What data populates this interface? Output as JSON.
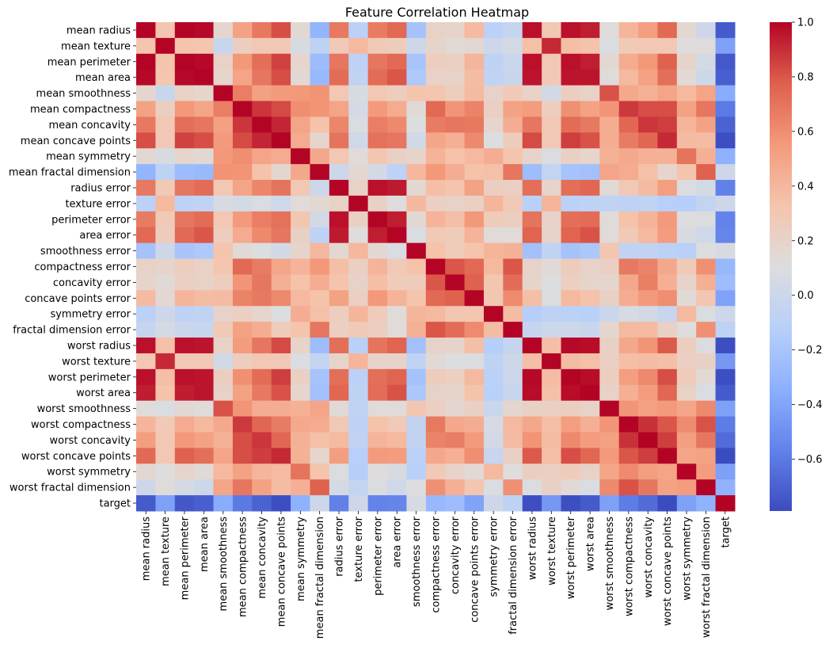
{
  "chart_data": {
    "type": "heatmap",
    "title": "Feature Correlation Heatmap",
    "colormap": "coolwarm",
    "colormap_stops": [
      "#3b4cc0",
      "#6282ea",
      "#8db0fe",
      "#b8d0f9",
      "#dddddd",
      "#f5c4ad",
      "#f49a7b",
      "#de604d",
      "#b40426"
    ],
    "vmin": -0.79,
    "vmax": 1.0,
    "colorbar_ticks": [
      -0.6,
      -0.4,
      -0.2,
      0.0,
      0.2,
      0.4,
      0.6,
      0.8,
      1.0
    ],
    "colorbar_tick_labels": [
      "−0.6",
      "−0.4",
      "−0.2",
      "0.0",
      "0.2",
      "0.4",
      "0.6",
      "0.8",
      "1.0"
    ],
    "labels": [
      "mean radius",
      "mean texture",
      "mean perimeter",
      "mean area",
      "mean smoothness",
      "mean compactness",
      "mean concavity",
      "mean concave points",
      "mean symmetry",
      "mean fractal dimension",
      "radius error",
      "texture error",
      "perimeter error",
      "area error",
      "smoothness error",
      "compactness error",
      "concavity error",
      "concave points error",
      "symmetry error",
      "fractal dimension error",
      "worst radius",
      "worst texture",
      "worst perimeter",
      "worst area",
      "worst smoothness",
      "worst compactness",
      "worst concavity",
      "worst concave points",
      "worst symmetry",
      "worst fractal dimension",
      "target"
    ],
    "matrix": [
      [
        1,
        0.32,
        1.0,
        0.99,
        0.17,
        0.51,
        0.68,
        0.82,
        0.15,
        -0.31,
        0.68,
        -0.1,
        0.67,
        0.74,
        -0.22,
        0.21,
        0.19,
        0.38,
        -0.1,
        -0.04,
        0.97,
        0.3,
        0.97,
        0.94,
        0.12,
        0.41,
        0.53,
        0.74,
        0.16,
        0.01,
        -0.73
      ],
      [
        0.32,
        1,
        0.33,
        0.32,
        -0.02,
        0.24,
        0.3,
        0.29,
        0.07,
        -0.08,
        0.28,
        0.39,
        0.28,
        0.26,
        0.01,
        0.19,
        0.14,
        0.16,
        0.01,
        0.05,
        0.35,
        0.91,
        0.36,
        0.34,
        0.08,
        0.28,
        0.3,
        0.3,
        0.11,
        0.12,
        -0.42
      ],
      [
        1.0,
        0.33,
        1,
        0.99,
        0.21,
        0.56,
        0.72,
        0.85,
        0.18,
        -0.26,
        0.69,
        -0.09,
        0.69,
        0.74,
        -0.2,
        0.25,
        0.23,
        0.41,
        -0.08,
        -0.01,
        0.97,
        0.3,
        0.97,
        0.94,
        0.15,
        0.46,
        0.56,
        0.77,
        0.19,
        0.05,
        -0.74
      ],
      [
        0.99,
        0.32,
        0.99,
        1,
        0.18,
        0.5,
        0.69,
        0.82,
        0.15,
        -0.28,
        0.73,
        -0.07,
        0.73,
        0.8,
        -0.17,
        0.21,
        0.21,
        0.37,
        -0.07,
        -0.02,
        0.96,
        0.29,
        0.96,
        0.96,
        0.12,
        0.39,
        0.51,
        0.72,
        0.14,
        0.0,
        -0.71
      ],
      [
        0.17,
        -0.02,
        0.21,
        0.18,
        1,
        0.66,
        0.52,
        0.55,
        0.56,
        0.58,
        0.3,
        0.07,
        0.3,
        0.25,
        0.33,
        0.32,
        0.25,
        0.38,
        0.2,
        0.28,
        0.21,
        0.04,
        0.24,
        0.21,
        0.81,
        0.47,
        0.43,
        0.5,
        0.39,
        0.5,
        -0.36
      ],
      [
        0.51,
        0.24,
        0.56,
        0.5,
        0.66,
        1,
        0.88,
        0.83,
        0.6,
        0.57,
        0.5,
        0.05,
        0.55,
        0.46,
        0.14,
        0.74,
        0.57,
        0.64,
        0.23,
        0.51,
        0.54,
        0.25,
        0.59,
        0.51,
        0.57,
        0.87,
        0.82,
        0.82,
        0.51,
        0.69,
        -0.6
      ],
      [
        0.68,
        0.3,
        0.72,
        0.69,
        0.52,
        0.88,
        1,
        0.92,
        0.5,
        0.34,
        0.63,
        0.08,
        0.66,
        0.62,
        0.1,
        0.67,
        0.69,
        0.68,
        0.18,
        0.45,
        0.69,
        0.3,
        0.73,
        0.68,
        0.45,
        0.75,
        0.88,
        0.86,
        0.41,
        0.51,
        -0.7
      ],
      [
        0.82,
        0.29,
        0.85,
        0.82,
        0.55,
        0.83,
        0.92,
        1,
        0.46,
        0.17,
        0.7,
        0.02,
        0.71,
        0.69,
        0.03,
        0.49,
        0.44,
        0.62,
        0.1,
        0.26,
        0.83,
        0.29,
        0.86,
        0.81,
        0.45,
        0.67,
        0.75,
        0.91,
        0.38,
        0.37,
        -0.78
      ],
      [
        0.15,
        0.07,
        0.18,
        0.15,
        0.56,
        0.6,
        0.5,
        0.46,
        1,
        0.48,
        0.3,
        0.13,
        0.31,
        0.22,
        0.19,
        0.42,
        0.34,
        0.39,
        0.45,
        0.33,
        0.19,
        0.09,
        0.22,
        0.18,
        0.43,
        0.47,
        0.43,
        0.43,
        0.7,
        0.44,
        -0.33
      ],
      [
        -0.31,
        -0.08,
        -0.26,
        -0.28,
        0.58,
        0.57,
        0.34,
        0.17,
        0.48,
        1,
        0.0,
        0.16,
        0.04,
        -0.09,
        0.4,
        0.56,
        0.45,
        0.34,
        0.35,
        0.69,
        -0.25,
        -0.05,
        -0.21,
        -0.23,
        0.5,
        0.46,
        0.35,
        0.18,
        0.33,
        0.77,
        0.01
      ],
      [
        0.68,
        0.28,
        0.69,
        0.73,
        0.3,
        0.5,
        0.63,
        0.7,
        0.3,
        0.0,
        1,
        0.21,
        0.97,
        0.95,
        0.16,
        0.36,
        0.33,
        0.51,
        0.24,
        0.23,
        0.72,
        0.19,
        0.72,
        0.75,
        0.14,
        0.29,
        0.38,
        0.53,
        0.09,
        0.05,
        -0.57
      ],
      [
        -0.1,
        0.39,
        -0.09,
        -0.07,
        0.07,
        0.05,
        0.08,
        0.02,
        0.13,
        0.16,
        0.21,
        1,
        0.22,
        0.11,
        0.4,
        0.23,
        0.2,
        0.23,
        0.41,
        0.28,
        -0.11,
        0.41,
        -0.1,
        -0.08,
        -0.07,
        -0.09,
        -0.07,
        -0.12,
        -0.13,
        -0.05,
        0.01
      ],
      [
        0.67,
        0.28,
        0.69,
        0.73,
        0.3,
        0.55,
        0.66,
        0.71,
        0.31,
        0.04,
        0.97,
        0.22,
        1,
        0.94,
        0.15,
        0.42,
        0.36,
        0.56,
        0.27,
        0.24,
        0.7,
        0.2,
        0.72,
        0.73,
        0.13,
        0.34,
        0.42,
        0.55,
        0.11,
        0.09,
        -0.56
      ],
      [
        0.74,
        0.26,
        0.74,
        0.8,
        0.25,
        0.46,
        0.62,
        0.69,
        0.22,
        -0.09,
        0.95,
        0.11,
        0.94,
        1,
        0.08,
        0.28,
        0.27,
        0.42,
        0.13,
        0.13,
        0.76,
        0.2,
        0.76,
        0.81,
        0.13,
        0.28,
        0.39,
        0.54,
        0.07,
        0.02,
        -0.55
      ],
      [
        -0.22,
        0.01,
        -0.2,
        -0.17,
        0.33,
        0.14,
        0.1,
        0.03,
        0.19,
        0.4,
        0.16,
        0.4,
        0.15,
        0.08,
        1,
        0.34,
        0.27,
        0.33,
        0.41,
        0.43,
        -0.23,
        -0.07,
        -0.22,
        -0.18,
        0.31,
        -0.06,
        -0.06,
        -0.1,
        -0.11,
        0.1,
        0.07
      ],
      [
        0.21,
        0.19,
        0.25,
        0.21,
        0.32,
        0.74,
        0.67,
        0.49,
        0.42,
        0.56,
        0.36,
        0.23,
        0.42,
        0.28,
        0.34,
        1,
        0.8,
        0.74,
        0.39,
        0.8,
        0.2,
        0.14,
        0.26,
        0.2,
        0.23,
        0.68,
        0.64,
        0.48,
        0.28,
        0.59,
        -0.29
      ],
      [
        0.19,
        0.14,
        0.23,
        0.21,
        0.25,
        0.57,
        0.69,
        0.44,
        0.34,
        0.45,
        0.33,
        0.2,
        0.36,
        0.27,
        0.27,
        0.8,
        1,
        0.77,
        0.31,
        0.73,
        0.19,
        0.1,
        0.23,
        0.19,
        0.17,
        0.48,
        0.66,
        0.44,
        0.2,
        0.44,
        -0.25
      ],
      [
        0.38,
        0.16,
        0.41,
        0.37,
        0.38,
        0.64,
        0.68,
        0.62,
        0.39,
        0.34,
        0.51,
        0.23,
        0.56,
        0.42,
        0.33,
        0.74,
        0.77,
        1,
        0.31,
        0.61,
        0.36,
        0.09,
        0.39,
        0.34,
        0.22,
        0.45,
        0.55,
        0.6,
        0.14,
        0.31,
        -0.41
      ],
      [
        -0.1,
        0.01,
        -0.08,
        -0.07,
        0.2,
        0.23,
        0.18,
        0.1,
        0.45,
        0.35,
        0.24,
        0.41,
        0.27,
        0.13,
        0.41,
        0.39,
        0.31,
        0.31,
        1,
        0.37,
        -0.13,
        -0.08,
        -0.1,
        -0.11,
        -0.01,
        0.06,
        0.04,
        -0.03,
        0.39,
        0.08,
        0.01
      ],
      [
        -0.04,
        0.05,
        -0.01,
        -0.02,
        0.28,
        0.51,
        0.45,
        0.26,
        0.33,
        0.69,
        0.23,
        0.28,
        0.24,
        0.13,
        0.43,
        0.8,
        0.73,
        0.61,
        0.37,
        1,
        -0.04,
        0.0,
        0.0,
        -0.02,
        0.17,
        0.39,
        0.38,
        0.22,
        0.11,
        0.59,
        -0.08
      ],
      [
        0.97,
        0.35,
        0.97,
        0.96,
        0.21,
        0.54,
        0.69,
        0.83,
        0.19,
        -0.25,
        0.72,
        -0.11,
        0.7,
        0.76,
        -0.23,
        0.2,
        0.19,
        0.36,
        -0.13,
        -0.04,
        1,
        0.36,
        0.99,
        0.98,
        0.22,
        0.48,
        0.57,
        0.79,
        0.24,
        0.09,
        -0.78
      ],
      [
        0.3,
        0.91,
        0.3,
        0.29,
        0.04,
        0.25,
        0.3,
        0.29,
        0.09,
        -0.05,
        0.19,
        0.41,
        0.2,
        0.2,
        -0.07,
        0.14,
        0.1,
        0.09,
        -0.08,
        0.0,
        0.36,
        1,
        0.37,
        0.35,
        0.23,
        0.36,
        0.37,
        0.36,
        0.23,
        0.22,
        -0.46
      ],
      [
        0.97,
        0.36,
        0.97,
        0.96,
        0.24,
        0.59,
        0.73,
        0.86,
        0.22,
        -0.21,
        0.72,
        -0.1,
        0.72,
        0.76,
        -0.22,
        0.26,
        0.23,
        0.39,
        -0.1,
        0.0,
        0.99,
        0.37,
        1,
        0.98,
        0.24,
        0.53,
        0.62,
        0.82,
        0.27,
        0.14,
        -0.78
      ],
      [
        0.94,
        0.34,
        0.94,
        0.96,
        0.21,
        0.51,
        0.68,
        0.81,
        0.18,
        -0.23,
        0.75,
        -0.08,
        0.73,
        0.81,
        -0.18,
        0.2,
        0.19,
        0.34,
        -0.11,
        -0.02,
        0.98,
        0.35,
        0.98,
        1,
        0.21,
        0.44,
        0.54,
        0.75,
        0.21,
        0.08,
        -0.73
      ],
      [
        0.12,
        0.08,
        0.15,
        0.12,
        0.81,
        0.57,
        0.45,
        0.45,
        0.43,
        0.5,
        0.14,
        -0.07,
        0.13,
        0.13,
        0.31,
        0.23,
        0.17,
        0.22,
        -0.01,
        0.17,
        0.22,
        0.23,
        0.24,
        0.21,
        1,
        0.57,
        0.52,
        0.55,
        0.49,
        0.62,
        -0.42
      ],
      [
        0.41,
        0.28,
        0.46,
        0.39,
        0.47,
        0.87,
        0.75,
        0.67,
        0.47,
        0.46,
        0.29,
        -0.09,
        0.34,
        0.28,
        -0.06,
        0.68,
        0.48,
        0.45,
        0.06,
        0.39,
        0.48,
        0.36,
        0.53,
        0.44,
        0.57,
        1,
        0.89,
        0.8,
        0.61,
        0.81,
        -0.59
      ],
      [
        0.53,
        0.3,
        0.56,
        0.51,
        0.43,
        0.82,
        0.88,
        0.75,
        0.43,
        0.35,
        0.38,
        -0.07,
        0.42,
        0.39,
        -0.06,
        0.64,
        0.66,
        0.55,
        0.04,
        0.38,
        0.57,
        0.37,
        0.62,
        0.54,
        0.52,
        0.89,
        1,
        0.86,
        0.53,
        0.69,
        -0.66
      ],
      [
        0.74,
        0.3,
        0.77,
        0.72,
        0.5,
        0.82,
        0.86,
        0.91,
        0.43,
        0.18,
        0.53,
        -0.12,
        0.55,
        0.54,
        -0.1,
        0.48,
        0.44,
        0.6,
        -0.03,
        0.22,
        0.79,
        0.36,
        0.82,
        0.75,
        0.55,
        0.8,
        0.86,
        1,
        0.5,
        0.51,
        -0.79
      ],
      [
        0.16,
        0.11,
        0.19,
        0.14,
        0.39,
        0.51,
        0.41,
        0.38,
        0.7,
        0.33,
        0.09,
        -0.13,
        0.11,
        0.07,
        -0.11,
        0.28,
        0.2,
        0.14,
        0.39,
        0.11,
        0.24,
        0.23,
        0.27,
        0.21,
        0.49,
        0.61,
        0.53,
        0.5,
        1,
        0.54,
        -0.42
      ],
      [
        0.01,
        0.12,
        0.05,
        0.0,
        0.5,
        0.69,
        0.51,
        0.37,
        0.44,
        0.77,
        0.05,
        -0.05,
        0.09,
        0.02,
        0.1,
        0.59,
        0.44,
        0.31,
        0.08,
        0.59,
        0.09,
        0.22,
        0.14,
        0.08,
        0.62,
        0.81,
        0.69,
        0.51,
        0.54,
        1,
        -0.32
      ],
      [
        -0.73,
        -0.42,
        -0.74,
        -0.71,
        -0.36,
        -0.6,
        -0.7,
        -0.78,
        -0.33,
        0.01,
        -0.57,
        0.01,
        -0.56,
        -0.55,
        0.07,
        -0.29,
        -0.25,
        -0.41,
        0.01,
        -0.08,
        -0.78,
        -0.46,
        -0.78,
        -0.73,
        -0.42,
        -0.59,
        -0.66,
        -0.79,
        -0.42,
        -0.32,
        1
      ]
    ]
  }
}
